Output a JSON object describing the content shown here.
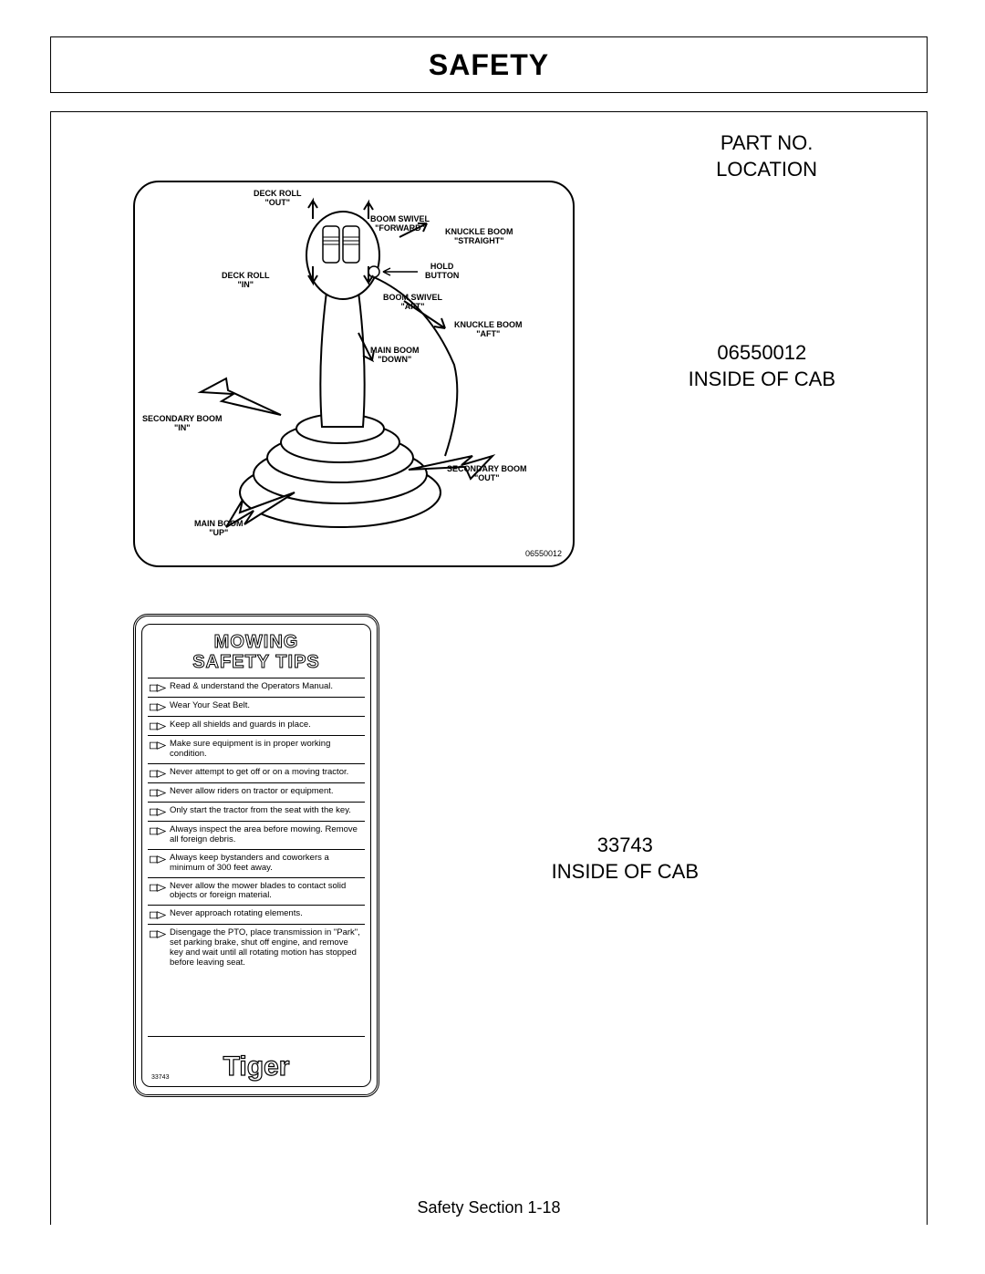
{
  "page": {
    "title": "SAFETY",
    "heading": "PART NO.\nLOCATION",
    "footer": "Safety Section   1-18"
  },
  "part1": {
    "number": "06550012",
    "location": "INSIDE OF CAB",
    "decal_partno": "06550012",
    "labels": {
      "deck_roll_out": "DECK ROLL\n\"OUT\"",
      "deck_roll_in": "DECK ROLL\n\"IN\"",
      "boom_swivel_forward": "BOOM SWIVEL\n\"FORWARD\"",
      "boom_swivel_aft": "BOOM SWIVEL\n\"AFT\"",
      "knuckle_boom_straight": "KNUCKLE BOOM\n\"STRAIGHT\"",
      "knuckle_boom_aft": "KNUCKLE BOOM\n\"AFT\"",
      "hold_button": "HOLD\nBUTTON",
      "main_boom_down": "MAIN BOOM\n\"DOWN\"",
      "main_boom_up": "MAIN BOOM\n\"UP\"",
      "secondary_boom_in": "SECONDARY BOOM\n\"IN\"",
      "secondary_boom_out": "SECONDARY BOOM\n\"OUT\""
    }
  },
  "part2": {
    "number": "33743",
    "location": "INSIDE OF CAB",
    "decal_partno": "33743",
    "title_line1": "MOWING",
    "title_line2": "SAFETY TIPS",
    "logo_text": "Tiger",
    "tips": [
      "Read & understand the Operators Manual.",
      "Wear Your Seat Belt.",
      "Keep all shields and guards in place.",
      "Make sure equipment is in proper working condition.",
      "Never attempt to get off or on a moving tractor.",
      "Never allow riders on tractor or equipment.",
      "Only start the tractor from the seat with the key.",
      "Always inspect the area before mowing. Remove all foreign debris.",
      "Always keep bystanders and coworkers a minimum of 300 feet away.",
      "Never allow the mower blades to contact solid objects or foreign material.",
      "Never approach rotating elements.",
      "Disengage the PTO, place transmission in \"Park\", set parking brake, shut off engine, and remove key and wait until all rotating motion has stopped before leaving seat."
    ]
  },
  "style": {
    "border_color": "#000000",
    "bg": "#ffffff",
    "title_fontsize": 32,
    "label_fontsize": 22,
    "tip_fontsize": 9.5,
    "joy_label_fontsize": 9
  }
}
